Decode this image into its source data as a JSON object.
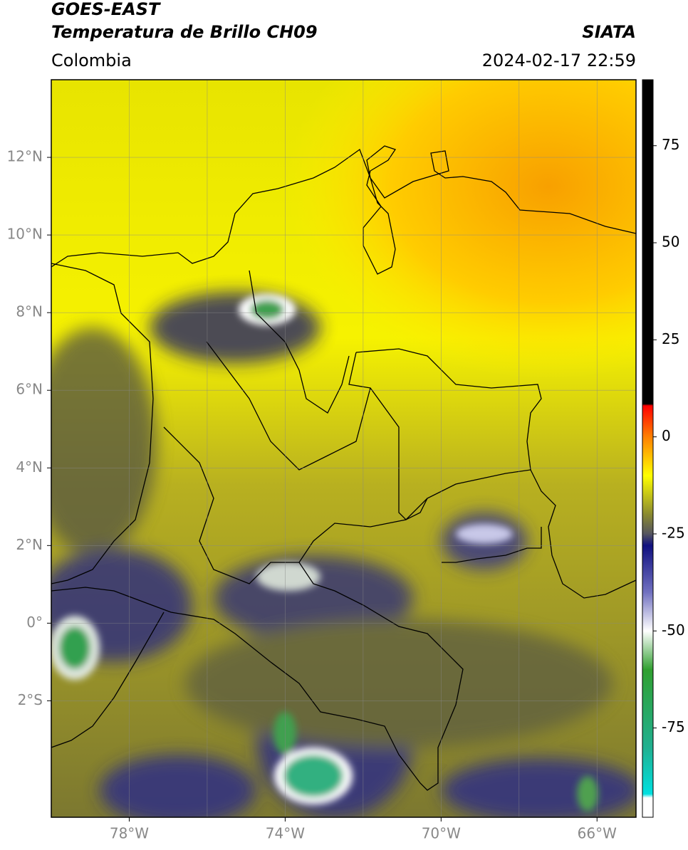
{
  "header": {
    "title_lines": [
      "GOES-EAST",
      "Temperatura de Brillo CH09"
    ],
    "region": "Colombia",
    "source": "SIATA",
    "datetime": "2024-02-17 22:59"
  },
  "map": {
    "xlim": [
      -80,
      -65
    ],
    "ylim": [
      -5,
      14
    ],
    "xticks": [
      {
        "value": -78,
        "label": "78°W"
      },
      {
        "value": -74,
        "label": "74°W"
      },
      {
        "value": -70,
        "label": "70°W"
      },
      {
        "value": -66,
        "label": "66°W"
      }
    ],
    "xgrid": [
      -78,
      -76,
      -74,
      -72,
      -70,
      -68,
      -66
    ],
    "yticks": [
      {
        "value": 12,
        "label": "12°N"
      },
      {
        "value": 10,
        "label": "10°N"
      },
      {
        "value": 8,
        "label": "8°N"
      },
      {
        "value": 6,
        "label": "6°N"
      },
      {
        "value": 4,
        "label": "4°N"
      },
      {
        "value": 2,
        "label": "2°N"
      },
      {
        "value": 0,
        "label": "0°"
      },
      {
        "value": -2,
        "label": "2°S"
      }
    ]
  },
  "colorbar": {
    "lim": [
      -98,
      92
    ],
    "ticks": [
      75,
      50,
      25,
      0,
      -25,
      -50,
      -75
    ],
    "stops": [
      {
        "value": 92,
        "color": "#000000"
      },
      {
        "value": 8.5,
        "color": "#000000"
      },
      {
        "value": 8,
        "color": "#ff0000"
      },
      {
        "value": 0,
        "color": "#ff8000"
      },
      {
        "value": -10,
        "color": "#ffff00"
      },
      {
        "value": -20,
        "color": "#8a8a30"
      },
      {
        "value": -25,
        "color": "#555560"
      },
      {
        "value": -28,
        "color": "#101080"
      },
      {
        "value": -40,
        "color": "#7070c0"
      },
      {
        "value": -50,
        "color": "#ffffff"
      },
      {
        "value": -60,
        "color": "#30a030"
      },
      {
        "value": -80,
        "color": "#20b090"
      },
      {
        "value": -92,
        "color": "#00e0e0"
      },
      {
        "value": -93,
        "color": "#ffffff"
      },
      {
        "value": -98,
        "color": "#ffffff"
      }
    ]
  }
}
